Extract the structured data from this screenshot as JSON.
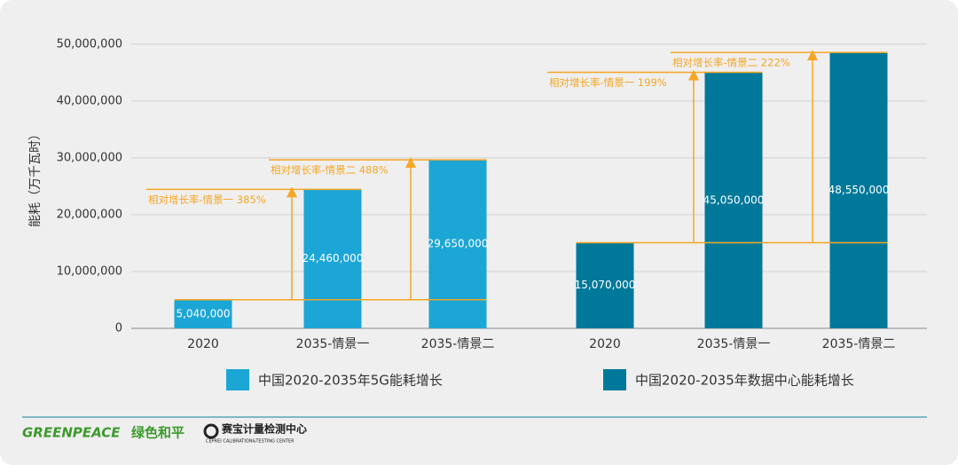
{
  "chart_data": {
    "type": "bar",
    "ylabel": "能耗（万千瓦时）",
    "categories": [
      "2020",
      "2035-情景一",
      "2035-情景二",
      "2020",
      "2035-情景一",
      "2035-情景二"
    ],
    "series": [
      {
        "name": "中国2020-2035年5G能耗增长",
        "color": "#1ba6d6",
        "values": [
          5040000,
          24460000,
          29650000,
          null,
          null,
          null
        ],
        "value_labels": [
          "5,040,000",
          "24,460,000",
          "29,650,000",
          null,
          null,
          null
        ]
      },
      {
        "name": "中国2020-2035年数据中心能耗增长",
        "color": "#00789a",
        "values": [
          null,
          null,
          null,
          15070000,
          45050000,
          48550000
        ],
        "value_labels": [
          null,
          null,
          null,
          "15,070,000",
          "45,050,000",
          "48,550,000"
        ]
      }
    ],
    "annotations": [
      "相对增长率-情景一 385%",
      "相对增长率-情景二  488%",
      "相对增长率-情景一 199%",
      "相对增长率-情景二  222%"
    ],
    "annotation_color": "#f5a623",
    "ylim": [
      0,
      52000000
    ],
    "yticks": [
      0,
      {
        "value": 10000000,
        "label": "10,000,000"
      },
      {
        "value": 20000000,
        "label": "20,000,000"
      },
      {
        "value": 30000000,
        "label": "30,000,000"
      },
      {
        "value": 40000000,
        "label": "40,000,000"
      },
      {
        "value": 50000000,
        "label": "50,000,000"
      }
    ],
    "grid": true
  },
  "footer": {
    "logo1": "GREENPEACE",
    "logo1_cn": "绿色和平",
    "logo2": "赛宝计量检测中心",
    "logo2_sub": "CEPREI CALIBRATION&TESTING CENTER"
  }
}
